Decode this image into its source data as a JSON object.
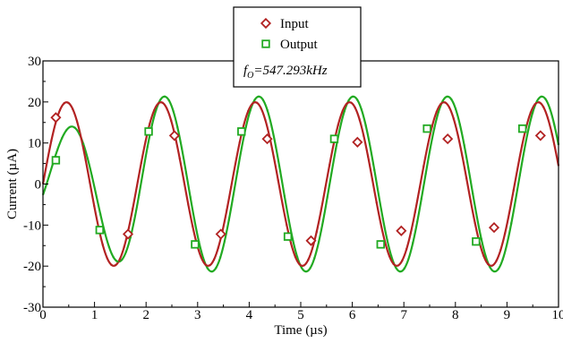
{
  "chart_data": {
    "type": "line",
    "title": "",
    "xlabel": "Time (µs)",
    "ylabel": "Current (µA)",
    "xlim": [
      0,
      10
    ],
    "ylim": [
      -30,
      30
    ],
    "x_ticks": [
      "0",
      "1",
      "2",
      "3",
      "4",
      "5",
      "6",
      "7",
      "8",
      "9",
      "10"
    ],
    "y_ticks": [
      "-30",
      "-20",
      "-10",
      "0",
      "10",
      "20",
      "30"
    ],
    "grid": false,
    "legend_position": "top-center",
    "annotation": {
      "prefix": "f",
      "subscript": "O",
      "value": "=547.293kHz"
    },
    "series": [
      {
        "name": "Input",
        "marker": "diamond",
        "color": "#b22222",
        "x": [
          0.25,
          1.65,
          2.55,
          3.45,
          4.35,
          5.2,
          6.1,
          6.95,
          7.85,
          8.75,
          9.65
        ],
        "y": [
          16.2,
          -12.2,
          11.8,
          -12.2,
          11.0,
          -13.8,
          10.2,
          -11.4,
          11.0,
          -10.6,
          11.8
        ]
      },
      {
        "name": "Output",
        "marker": "square",
        "color": "#22aa22",
        "x": [
          0.25,
          1.1,
          2.05,
          2.95,
          3.85,
          4.75,
          5.65,
          6.55,
          7.45,
          8.4,
          9.3
        ],
        "y": [
          5.8,
          -11.2,
          12.8,
          -14.7,
          12.8,
          -12.8,
          11.0,
          -14.7,
          13.5,
          -14.0,
          13.5
        ]
      }
    ]
  }
}
